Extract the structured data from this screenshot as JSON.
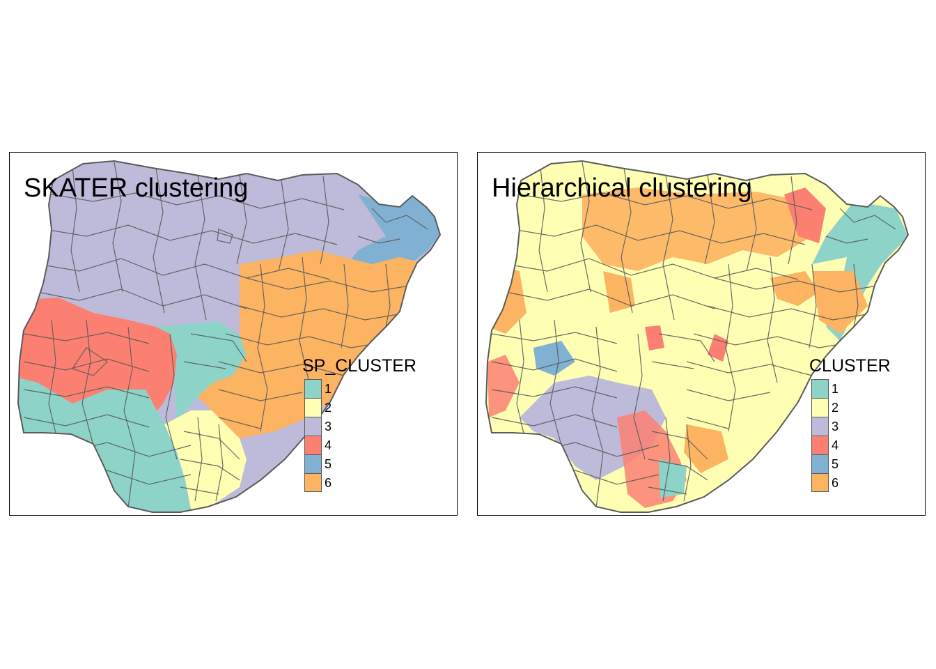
{
  "colors": {
    "c1": "#8dd3c7",
    "c2": "#ffffb3",
    "c3": "#bebada",
    "c4": "#fb8072",
    "c5": "#80b1d3",
    "c6": "#fdb462",
    "border": "#5a5a5a"
  },
  "maps": [
    {
      "title": "SKATER clustering",
      "legend": {
        "title": "SP_CLUSTER",
        "items": [
          {
            "label": "1",
            "color": "#8dd3c7"
          },
          {
            "label": "2",
            "color": "#ffffb3"
          },
          {
            "label": "3",
            "color": "#bebada"
          },
          {
            "label": "4",
            "color": "#fb8072"
          },
          {
            "label": "5",
            "color": "#80b1d3"
          },
          {
            "label": "6",
            "color": "#fdb462"
          }
        ]
      }
    },
    {
      "title": "Hierarchical clustering",
      "legend": {
        "title": "CLUSTER",
        "items": [
          {
            "label": "1",
            "color": "#8dd3c7"
          },
          {
            "label": "2",
            "color": "#ffffb3"
          },
          {
            "label": "3",
            "color": "#bebada"
          },
          {
            "label": "4",
            "color": "#fb8072"
          },
          {
            "label": "5",
            "color": "#80b1d3"
          },
          {
            "label": "6",
            "color": "#fdb462"
          }
        ]
      }
    }
  ]
}
